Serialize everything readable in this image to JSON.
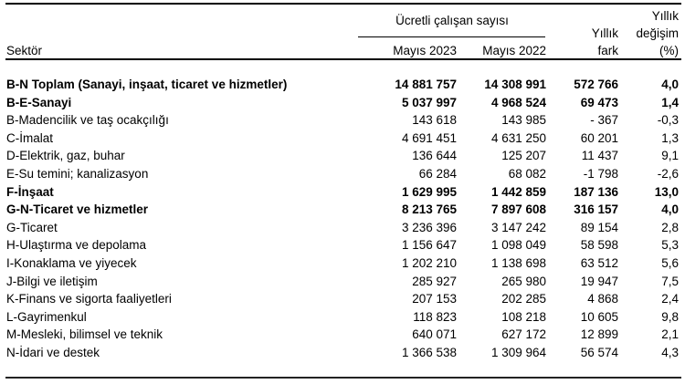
{
  "header": {
    "sector_label": "Sektör",
    "group_label": "Ücretli çalışan sayısı",
    "col_may2023": "Mayıs 2023",
    "col_may2022": "Mayıs 2022",
    "col_fark_line1": "Yıllık",
    "col_fark_line2": "fark",
    "col_change_line1": "Yıllık",
    "col_change_line2": "değişim",
    "col_change_line3": "(%)"
  },
  "rows": [
    {
      "label": "B-N Toplam (Sanayi, inşaat, ticaret ve hizmetler)",
      "may2023": "14 881 757",
      "may2022": "14 308 991",
      "fark": "572 766",
      "change": "4,0",
      "bold": true
    },
    {
      "label": "B-E-Sanayi",
      "may2023": "5 037 997",
      "may2022": "4 968 524",
      "fark": "69 473",
      "change": "1,4",
      "bold": true
    },
    {
      "label": "B-Madencilik ve taş ocakçılığı",
      "may2023": "143 618",
      "may2022": "143 985",
      "fark": "- 367",
      "change": "-0,3",
      "bold": false
    },
    {
      "label": "C-İmalat",
      "may2023": "4 691 451",
      "may2022": "4 631 250",
      "fark": "60 201",
      "change": "1,3",
      "bold": false
    },
    {
      "label": "D-Elektrik, gaz, buhar",
      "may2023": "136 644",
      "may2022": "125 207",
      "fark": "11 437",
      "change": "9,1",
      "bold": false
    },
    {
      "label": "E-Su temini; kanalizasyon",
      "may2023": "66 284",
      "may2022": "68 082",
      "fark": "-1 798",
      "change": "-2,6",
      "bold": false
    },
    {
      "label": "F-İnşaat",
      "may2023": "1 629 995",
      "may2022": "1 442 859",
      "fark": "187 136",
      "change": "13,0",
      "bold": true
    },
    {
      "label": "G-N-Ticaret ve hizmetler",
      "may2023": "8 213 765",
      "may2022": "7 897 608",
      "fark": "316 157",
      "change": "4,0",
      "bold": true
    },
    {
      "label": "G-Ticaret",
      "may2023": "3 236 396",
      "may2022": "3 147 242",
      "fark": "89 154",
      "change": "2,8",
      "bold": false
    },
    {
      "label": "H-Ulaştırma ve depolama",
      "may2023": "1 156 647",
      "may2022": "1 098 049",
      "fark": "58 598",
      "change": "5,3",
      "bold": false
    },
    {
      "label": "I-Konaklama ve yiyecek",
      "may2023": "1 202 210",
      "may2022": "1 138 698",
      "fark": "63 512",
      "change": "5,6",
      "bold": false
    },
    {
      "label": "J-Bilgi ve iletişim",
      "may2023": "285 927",
      "may2022": "265 980",
      "fark": "19 947",
      "change": "7,5",
      "bold": false
    },
    {
      "label": "K-Finans ve sigorta faaliyetleri",
      "may2023": "207 153",
      "may2022": "202 285",
      "fark": "4 868",
      "change": "2,4",
      "bold": false
    },
    {
      "label": "L-Gayrimenkul",
      "may2023": "118 823",
      "may2022": "108 218",
      "fark": "10 605",
      "change": "9,8",
      "bold": false
    },
    {
      "label": "M-Mesleki, bilimsel ve teknik",
      "may2023": "640 071",
      "may2022": "627 172",
      "fark": "12 899",
      "change": "2,1",
      "bold": false
    },
    {
      "label": "N-İdari ve destek",
      "may2023": "1 366 538",
      "may2022": "1 309 964",
      "fark": "56 574",
      "change": "4,3",
      "bold": false
    }
  ],
  "chart_data": {
    "type": "table",
    "title": "Ücretli çalışan sayısı",
    "columns": [
      "Sektör",
      "Mayıs 2023",
      "Mayıs 2022",
      "Yıllık fark",
      "Yıllık değişim (%)"
    ],
    "rows": [
      [
        "B-N Toplam (Sanayi, inşaat, ticaret ve hizmetler)",
        14881757,
        14308991,
        572766,
        4.0
      ],
      [
        "B-E-Sanayi",
        5037997,
        4968524,
        69473,
        1.4
      ],
      [
        "B-Madencilik ve taş ocakçılığı",
        143618,
        143985,
        -367,
        -0.3
      ],
      [
        "C-İmalat",
        4691451,
        4631250,
        60201,
        1.3
      ],
      [
        "D-Elektrik, gaz, buhar",
        136644,
        125207,
        11437,
        9.1
      ],
      [
        "E-Su temini; kanalizasyon",
        66284,
        68082,
        -1798,
        -2.6
      ],
      [
        "F-İnşaat",
        1629995,
        1442859,
        187136,
        13.0
      ],
      [
        "G-N-Ticaret ve hizmetler",
        8213765,
        7897608,
        316157,
        4.0
      ],
      [
        "G-Ticaret",
        3236396,
        3147242,
        89154,
        2.8
      ],
      [
        "H-Ulaştırma ve depolama",
        1156647,
        1098049,
        58598,
        5.3
      ],
      [
        "I-Konaklama ve yiyecek",
        1202210,
        1138698,
        63512,
        5.6
      ],
      [
        "J-Bilgi ve iletişim",
        285927,
        265980,
        19947,
        7.5
      ],
      [
        "K-Finans ve sigorta faaliyetleri",
        207153,
        202285,
        4868,
        2.4
      ],
      [
        "L-Gayrimenkul",
        118823,
        108218,
        10605,
        9.8
      ],
      [
        "M-Mesleki, bilimsel ve teknik",
        640071,
        627172,
        12899,
        2.1
      ],
      [
        "N-İdari ve destek",
        1366538,
        1309964,
        56574,
        4.3
      ]
    ]
  }
}
